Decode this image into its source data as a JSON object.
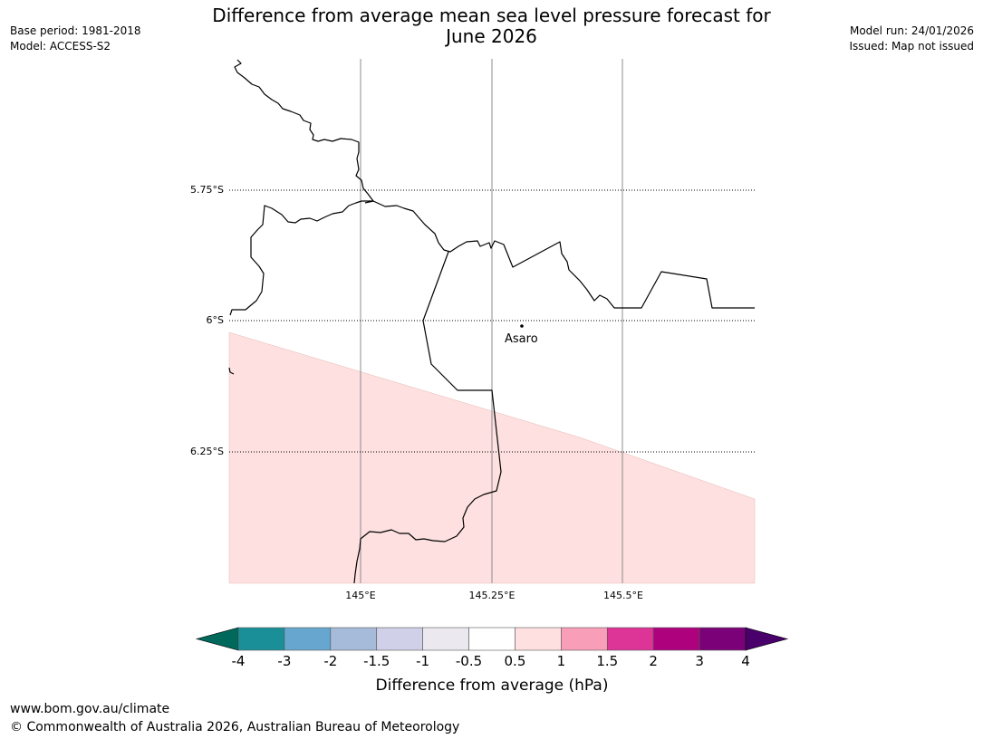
{
  "header": {
    "title_line1": "Difference from average mean sea level pressure forecast for",
    "title_line2": "June 2026",
    "base_period": "Base period: 1981-2018",
    "model": "Model: ACCESS-S2",
    "model_run": "Model run: 24/01/2026",
    "issued": "Issued: Map not issued"
  },
  "map": {
    "lat_labels": [
      "5.75°S",
      "6°S",
      "6.25°S"
    ],
    "lon_labels": [
      "145°E",
      "145.25°E",
      "145.5°E"
    ],
    "place": "Asaro",
    "shaded_category": "0.5 to 1"
  },
  "colorbar": {
    "label": "Difference from average (hPa)",
    "ticks": [
      "-4",
      "-3",
      "-2",
      "-1.5",
      "-1",
      "-0.5",
      "0.5",
      "1",
      "1.5",
      "2",
      "3",
      "4"
    ],
    "colors": {
      "below_min": "#00695c",
      "bins": [
        "#1b8f98",
        "#67a6cf",
        "#a6bad9",
        "#d0d0e8",
        "#ebe9ef",
        "#ffffff",
        "#fde0df",
        "#f89eb8",
        "#dd3497",
        "#ae017e",
        "#7a0177"
      ],
      "above_max": "#49006a"
    }
  },
  "footer": {
    "url": "www.bom.gov.au/climate",
    "copyright": "© Commonwealth of Australia 2026, Australian Bureau of Meteorology"
  }
}
